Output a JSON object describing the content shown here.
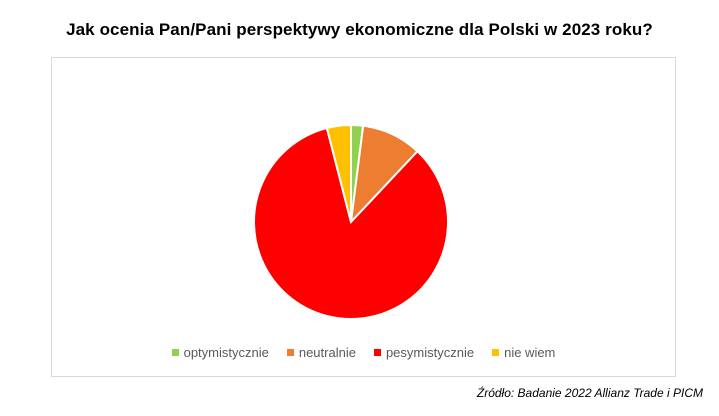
{
  "title": "Jak ocenia Pan/Pani perspektywy ekonomiczne dla Polski w 2023 roku?",
  "source": "Źródło: Badanie 2022 Allianz Trade i PICM",
  "chart_data": {
    "type": "pie",
    "title": "Jak ocenia Pan/Pani perspektywy ekonomiczne dla Polski w 2023 roku?",
    "legend_position": "bottom",
    "start_angle_deg": 0,
    "direction": "clockwise",
    "slices": [
      {
        "label": "optymistycznie",
        "value": 2,
        "color": "#92D050"
      },
      {
        "label": "neutralnie",
        "value": 10,
        "color": "#ED7D31"
      },
      {
        "label": "pesymistycznie",
        "value": 84,
        "color": "#FF0000"
      },
      {
        "label": "nie wiem",
        "value": 4,
        "color": "#FFC000"
      }
    ]
  }
}
